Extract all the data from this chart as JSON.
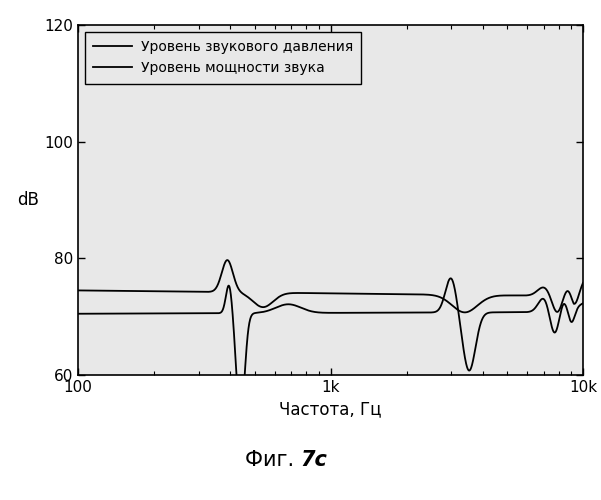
{
  "title_normal": "Фиг. ",
  "title_bold": "7c",
  "xlabel": "Частота, Гц",
  "ylabel": "dB",
  "xlim": [
    100,
    10000
  ],
  "ylim": [
    60,
    120
  ],
  "yticks": [
    60,
    80,
    100,
    120
  ],
  "xtick_labels": [
    "100",
    "1k",
    "10k"
  ],
  "xtick_positions": [
    100,
    1000,
    10000
  ],
  "legend_solid": "Уровень звукового давления",
  "legend_dashed": "Уровень мощности звука",
  "background_color": "#ffffff",
  "axes_bg": "#e8e8e8",
  "line_color": "#000000"
}
